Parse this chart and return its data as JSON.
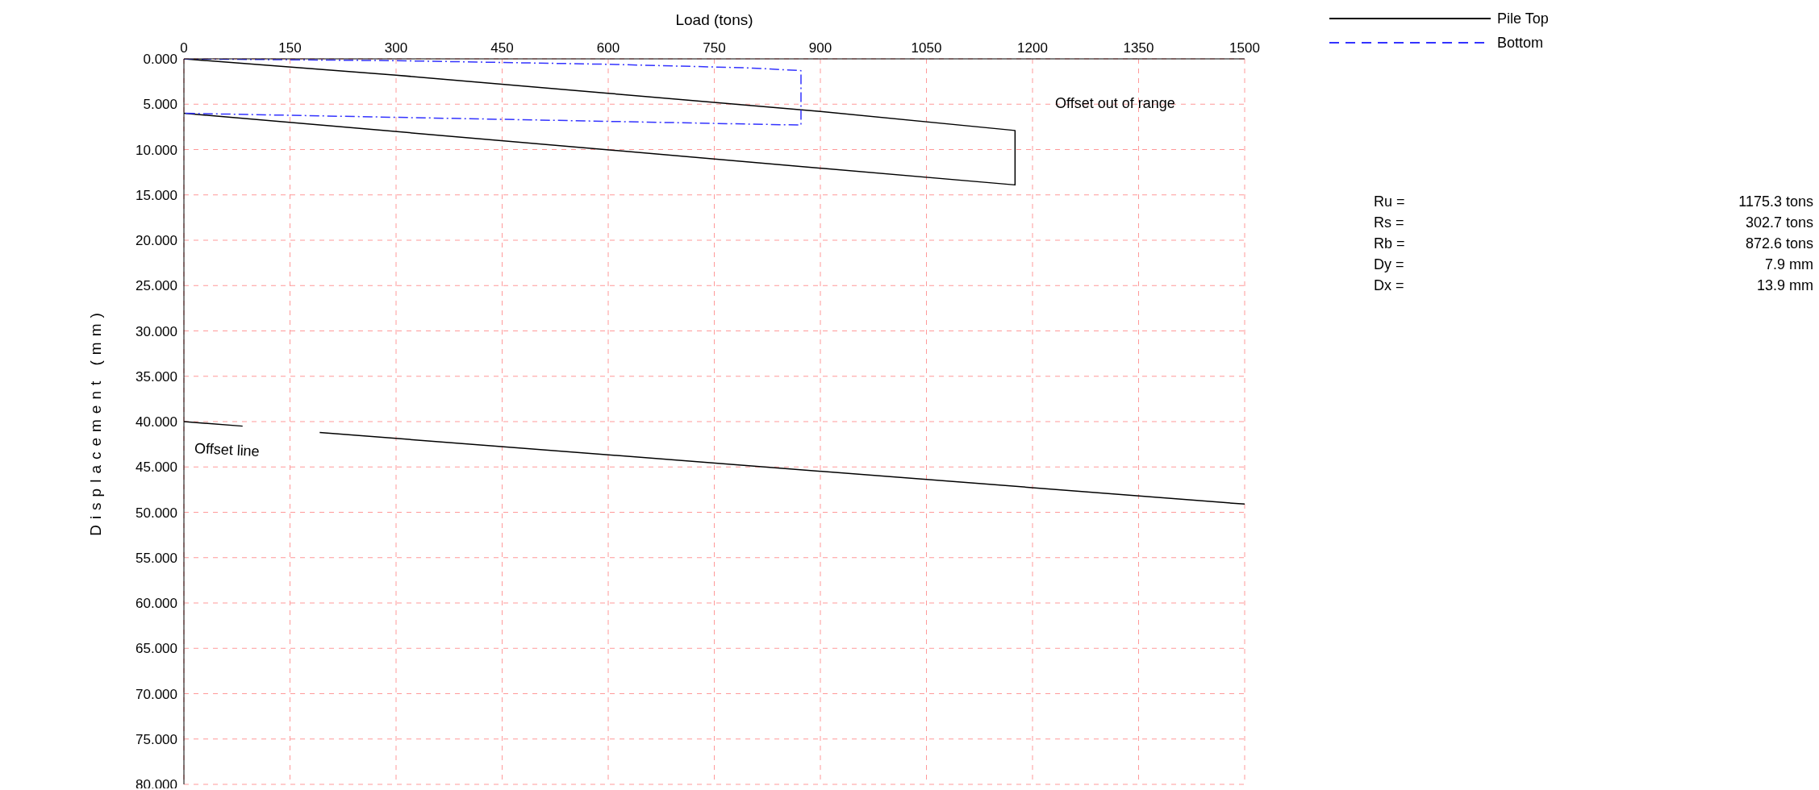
{
  "chart_data": {
    "type": "line",
    "xlabel": "Load (tons)",
    "ylabel": "Displacement (mm)",
    "xlim": [
      0,
      1500
    ],
    "xticks": [
      0,
      150,
      300,
      450,
      600,
      750,
      900,
      1050,
      1200,
      1350,
      1500
    ],
    "ylim": [
      80,
      0
    ],
    "yticks": [
      {
        "value": 0,
        "label": "0.000"
      },
      {
        "value": 5,
        "label": "5.000"
      },
      {
        "value": 10,
        "label": "10.000"
      },
      {
        "value": 15,
        "label": "15.000"
      },
      {
        "value": 20,
        "label": "20.000"
      },
      {
        "value": 25,
        "label": "25.000"
      },
      {
        "value": 30,
        "label": "30.000"
      },
      {
        "value": 35,
        "label": "35.000"
      },
      {
        "value": 40,
        "label": "40.000"
      },
      {
        "value": 45,
        "label": "45.000"
      },
      {
        "value": 50,
        "label": "50.000"
      },
      {
        "value": 55,
        "label": "55.000"
      },
      {
        "value": 60,
        "label": "60.000"
      },
      {
        "value": 65,
        "label": "65.000"
      },
      {
        "value": 70,
        "label": "70.000"
      },
      {
        "value": 75,
        "label": "75.000"
      },
      {
        "value": 80,
        "label": "80.000"
      }
    ],
    "grid": true,
    "legend": "top right",
    "series": [
      {
        "name": "Pile Top",
        "color": "#000000",
        "line_style": "solid",
        "x": [
          0,
          300,
          600,
          900,
          1175.3,
          1175.3,
          0
        ],
        "values": [
          0,
          1.8,
          3.8,
          5.8,
          7.9,
          13.9,
          6.0
        ]
      },
      {
        "name": "Bottom",
        "color": "#3333ff",
        "line_style": "dashed",
        "x": [
          0,
          300,
          600,
          800,
          872.6,
          872.6,
          0
        ],
        "values": [
          0,
          0.2,
          0.6,
          1.0,
          1.3,
          7.3,
          6.0
        ]
      },
      {
        "name": "Offset line",
        "color": "#000000",
        "line_style": "solid",
        "x": [
          0,
          83,
          137,
          192,
          1500
        ],
        "values": [
          40,
          40.5,
          null,
          41.2,
          49.1
        ]
      }
    ],
    "annotations": [
      "Offset out of range",
      "Ru =",
      "1175.3 tons",
      "Rs =",
      "302.7 tons",
      "Rb =",
      "872.6 tons",
      "Dy =",
      "7.9 mm",
      "Dx =",
      "13.9 mm"
    ]
  }
}
